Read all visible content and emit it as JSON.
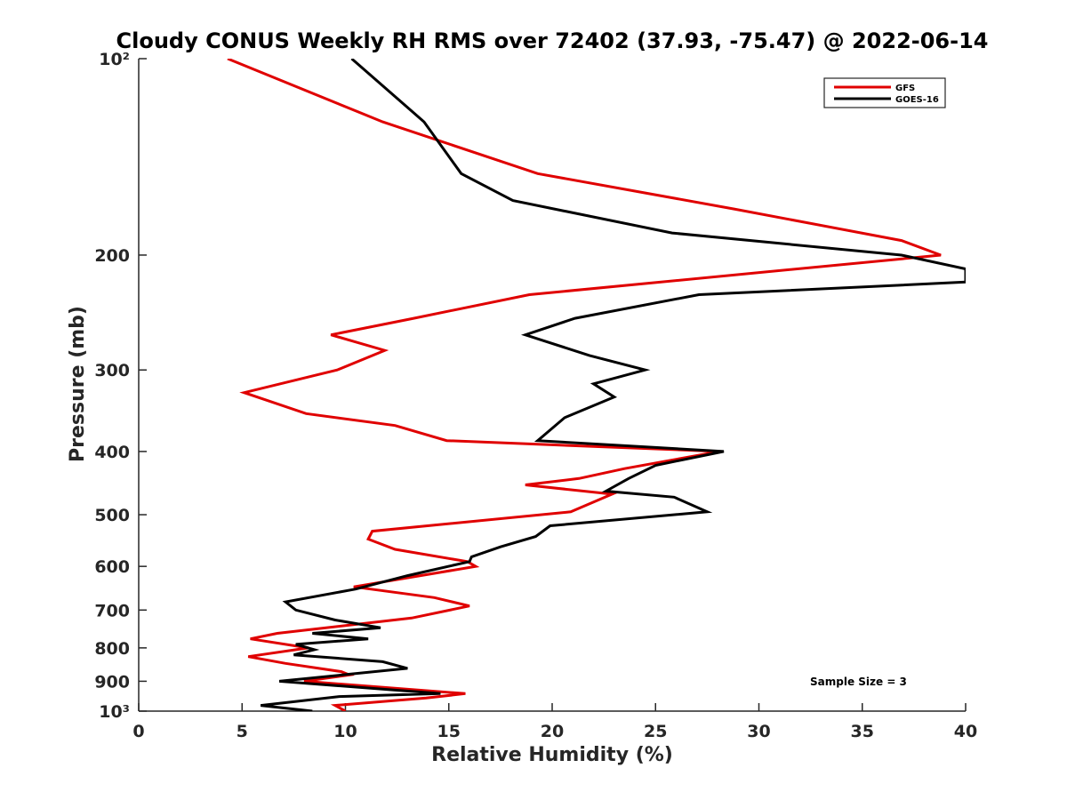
{
  "chart_data": {
    "type": "line",
    "title": "Cloudy CONUS Weekly RH RMS over 72402 (37.93, -75.47) @ 2022-06-14",
    "xlabel": "Relative Humidity (%)",
    "ylabel": "Pressure (mb)",
    "xlim": [
      0,
      40
    ],
    "ylim": [
      100,
      1000
    ],
    "y_scale": "log",
    "y_reversed": true,
    "grid": false,
    "legend_position": "top-right",
    "x_ticks": [
      0,
      5,
      10,
      15,
      20,
      25,
      30,
      35,
      40
    ],
    "x_tick_labels": [
      "0",
      "5",
      "10",
      "15",
      "20",
      "25",
      "30",
      "35",
      "40"
    ],
    "y_ticks": [
      100,
      200,
      300,
      400,
      500,
      600,
      700,
      800,
      900,
      1000
    ],
    "y_tick_labels": [
      "10²",
      "200",
      "300",
      "400",
      "500",
      "600",
      "700",
      "800",
      "900",
      "10³"
    ],
    "series": [
      {
        "name": "GFS",
        "color": "#e00000",
        "x": [
          4.3,
          11.8,
          19.3,
          28.8,
          36.9,
          38.8,
          18.9,
          13.3,
          9.3,
          11.9,
          9.6,
          5.1,
          8.1,
          12.4,
          14.9,
          28.1,
          23.5,
          21.3,
          18.7,
          22.9,
          20.9,
          11.3,
          11.1,
          12.4,
          15.9,
          16.3,
          10.4,
          14.3,
          16.0,
          13.2,
          6.7,
          5.4,
          8.2,
          5.3,
          7.1,
          9.8,
          10.2,
          8.0,
          15.8,
          13.9,
          9.5,
          10.0
        ],
        "y": [
          100,
          125,
          150,
          170,
          190,
          200,
          230,
          250,
          265,
          280,
          300,
          325,
          350,
          365,
          385,
          400,
          425,
          440,
          450,
          465,
          495,
          530,
          545,
          565,
          590,
          600,
          645,
          670,
          690,
          720,
          760,
          775,
          800,
          825,
          845,
          870,
          880,
          900,
          940,
          955,
          980,
          1000
        ]
      },
      {
        "name": "GOES-16",
        "color": "#000000",
        "x": [
          10.3,
          13.8,
          15.6,
          18.1,
          25.8,
          36.9,
          40.0,
          40.0,
          27.1,
          21.1,
          18.7,
          21.8,
          24.5,
          22.0,
          23.0,
          20.6,
          19.3,
          28.3,
          25.0,
          23.7,
          22.6,
          25.9,
          27.5,
          19.9,
          19.2,
          17.5,
          16.1,
          16.0,
          13.0,
          10.5,
          7.1,
          7.6,
          9.5,
          11.7,
          8.4,
          11.1,
          7.6,
          8.5,
          7.5,
          11.8,
          13.0,
          6.8,
          14.6,
          9.7,
          5.9,
          8.4
        ],
        "y": [
          100,
          125,
          150,
          165,
          185,
          200,
          210,
          220,
          230,
          250,
          265,
          285,
          300,
          315,
          330,
          355,
          385,
          400,
          420,
          440,
          460,
          470,
          495,
          520,
          540,
          560,
          580,
          590,
          620,
          650,
          680,
          700,
          725,
          745,
          760,
          775,
          790,
          805,
          820,
          840,
          860,
          900,
          940,
          950,
          980,
          1000
        ]
      }
    ],
    "annotations": [
      "Sample Size = 3"
    ]
  }
}
